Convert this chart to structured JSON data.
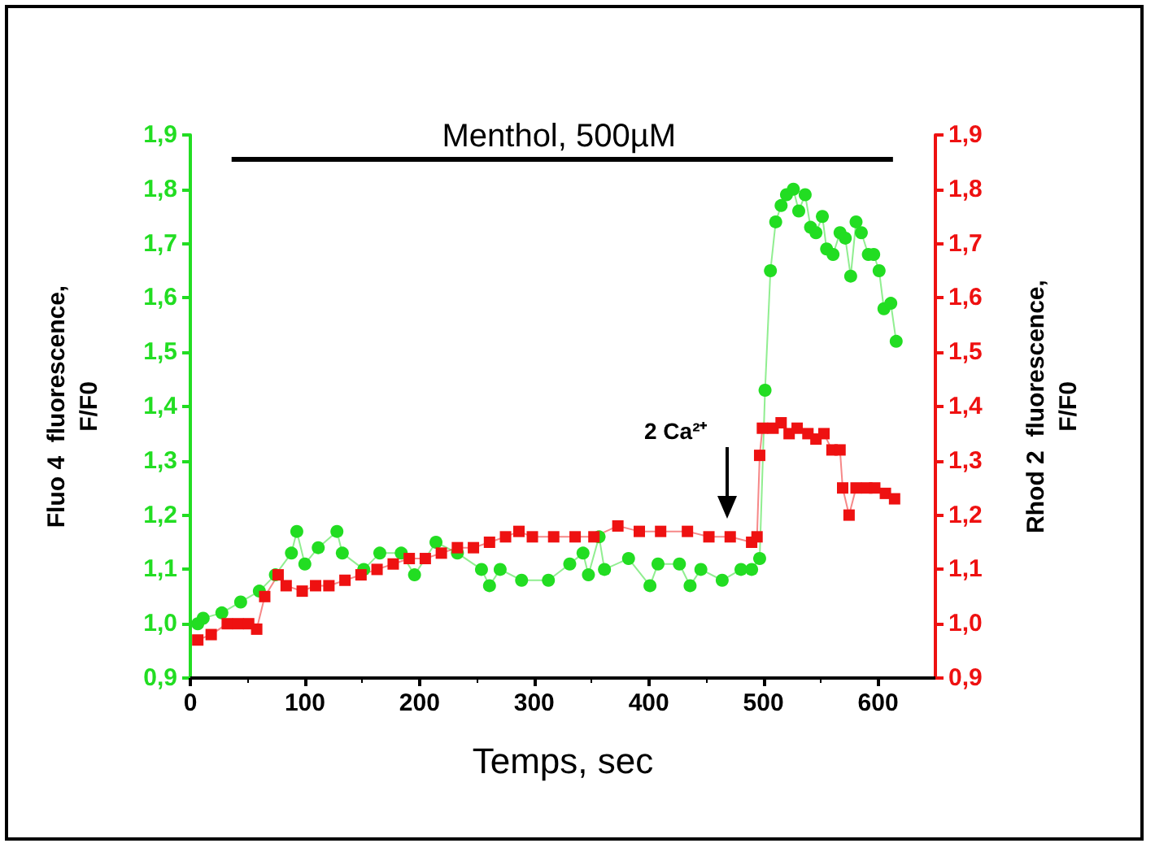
{
  "chart_data": {
    "type": "line",
    "xlabel": "Temps, sec",
    "ylabel": "Fluo 4  fluorescence,\nF/F0",
    "y2label": "Rhod 2  fluorescence,\nF/F0",
    "xlim": [
      0,
      650
    ],
    "xticks": [
      0,
      100,
      200,
      300,
      400,
      500,
      600
    ],
    "ylim": [
      0.9,
      1.9
    ],
    "yticks": [
      {
        "value": 0.9,
        "label": "0,9"
      },
      {
        "value": 1.0,
        "label": "1,0"
      },
      {
        "value": 1.1,
        "label": "1,1"
      },
      {
        "value": 1.2,
        "label": "1,2"
      },
      {
        "value": 1.3,
        "label": "1,3"
      },
      {
        "value": 1.4,
        "label": "1,4"
      },
      {
        "value": 1.5,
        "label": "1,5"
      },
      {
        "value": 1.6,
        "label": "1,6"
      },
      {
        "value": 1.7,
        "label": "1,7"
      },
      {
        "value": 1.8,
        "label": "1,8"
      },
      {
        "value": 1.9,
        "label": "1,9"
      }
    ],
    "y2lim": [
      0.9,
      1.9
    ],
    "y2ticks": [
      {
        "value": 0.9,
        "label": "0,9"
      },
      {
        "value": 1.0,
        "label": "1,0"
      },
      {
        "value": 1.1,
        "label": "1,1"
      },
      {
        "value": 1.2,
        "label": "1,2"
      },
      {
        "value": 1.3,
        "label": "1,3"
      },
      {
        "value": 1.4,
        "label": "1,4"
      },
      {
        "value": 1.5,
        "label": "1,5"
      },
      {
        "value": 1.6,
        "label": "1,6"
      },
      {
        "value": 1.7,
        "label": "1,7"
      },
      {
        "value": 1.8,
        "label": "1,8"
      },
      {
        "value": 1.9,
        "label": "1,9"
      }
    ],
    "grid": false,
    "legend": false,
    "line_style": "solid",
    "series": [
      {
        "color": "#22dd22",
        "marker": "circle",
        "x": [
          6.5,
          11.2,
          27.5,
          43.9,
          60.2,
          74.2,
          88.2,
          92.9,
          99.9,
          111.6,
          127.9,
          132.6,
          151.3,
          165.3,
          184.0,
          195.6,
          214.3,
          233.0,
          254.0,
          261.0,
          270.3,
          289.0,
          312.4,
          331.0,
          342.6,
          347.3,
          356.6,
          361.3,
          382.3,
          401.0,
          408.0,
          426.7,
          436.0,
          445.4,
          464.0,
          480.4,
          489.7,
          496.7,
          501.4,
          506.1,
          510.7,
          515.4,
          520.1,
          526.1,
          530.8,
          536.4,
          541.1,
          545.8,
          551.4,
          555.1,
          560.7,
          566.8,
          571.4,
          576.1,
          580.8,
          585.4,
          591.5,
          596.2,
          600.9,
          605.1,
          611.1,
          615.8
        ],
        "values": [
          1.0,
          1.01,
          1.02,
          1.04,
          1.06,
          1.09,
          1.13,
          1.17,
          1.11,
          1.14,
          1.17,
          1.13,
          1.1,
          1.13,
          1.13,
          1.09,
          1.15,
          1.13,
          1.1,
          1.07,
          1.1,
          1.08,
          1.08,
          1.11,
          1.13,
          1.09,
          1.16,
          1.1,
          1.12,
          1.07,
          1.11,
          1.11,
          1.07,
          1.1,
          1.08,
          1.1,
          1.1,
          1.12,
          1.43,
          1.65,
          1.74,
          1.77,
          1.79,
          1.8,
          1.76,
          1.79,
          1.73,
          1.72,
          1.75,
          1.69,
          1.68,
          1.72,
          1.71,
          1.64,
          1.74,
          1.72,
          1.68,
          1.68,
          1.65,
          1.58,
          1.59,
          1.52
        ]
      },
      {
        "name": "Menthol, 500µM",
        "color": "#000000",
        "marker": "none",
        "x": [
          36,
          613
        ],
        "values": [
          1.855,
          1.855
        ]
      },
      {
        "color": "#ee1111",
        "marker": "square",
        "axis": "y2",
        "x": [
          6.5,
          18.2,
          32.2,
          41.6,
          50.9,
          57.9,
          64.9,
          76.6,
          83.6,
          97.6,
          109.3,
          120.9,
          134.9,
          148.9,
          162.9,
          177.0,
          191.0,
          205.0,
          219.0,
          233.0,
          247.0,
          261.0,
          275.0,
          286.7,
          298.4,
          317.0,
          335.7,
          352.1,
          373.0,
          391.7,
          410.3,
          433.7,
          452.4,
          471.0,
          489.7,
          494.4,
          496.7,
          499.1,
          508.4,
          515.4,
          522.4,
          529.4,
          538.8,
          545.8,
          552.8,
          559.8,
          566.8,
          569.1,
          574.7,
          580.8,
          590.1,
          597.1,
          606.4,
          614.4
        ],
        "values": [
          0.97,
          0.98,
          1.0,
          1.0,
          1.0,
          0.99,
          1.05,
          1.09,
          1.07,
          1.06,
          1.07,
          1.07,
          1.08,
          1.09,
          1.1,
          1.11,
          1.12,
          1.12,
          1.13,
          1.14,
          1.14,
          1.15,
          1.16,
          1.17,
          1.16,
          1.16,
          1.16,
          1.16,
          1.18,
          1.17,
          1.17,
          1.17,
          1.16,
          1.16,
          1.15,
          1.16,
          1.31,
          1.36,
          1.36,
          1.37,
          1.35,
          1.36,
          1.35,
          1.34,
          1.35,
          1.32,
          1.32,
          1.25,
          1.2,
          1.25,
          1.25,
          1.25,
          1.24,
          1.23
        ]
      }
    ],
    "annotations": [
      "2 Ca²⁺"
    ]
  }
}
